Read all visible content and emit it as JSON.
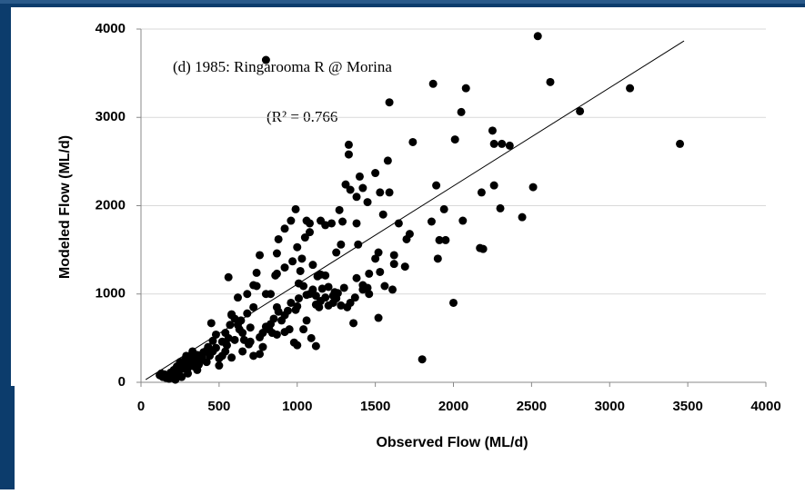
{
  "chart_data": {
    "type": "scatter",
    "annotations": [
      "(d) 1985: Ringarooma R @ Morina",
      "(R² = 0.766"
    ],
    "xlabel": "Observed Flow (ML/d)",
    "ylabel": "Modeled Flow (ML/d)",
    "color": "#000000",
    "grid": true,
    "xlim": [
      0,
      4000
    ],
    "xticks": [
      0,
      500,
      1000,
      1500,
      2000,
      2500,
      3000,
      3500,
      4000
    ],
    "ylim": [
      0,
      4000
    ],
    "yticks": [
      0,
      1000,
      2000,
      3000,
      4000
    ],
    "x": [
      800,
      2540,
      1870,
      2080,
      2620,
      3130,
      3450,
      2810,
      2050,
      1590,
      1800,
      2000,
      1520,
      1360,
      1330,
      1330,
      1580,
      1740,
      2250,
      2260,
      2310,
      2360,
      2510,
      2440,
      2190,
      2170,
      2010,
      2060,
      1860,
      1890,
      1910,
      1950,
      1940,
      2180,
      2260,
      2300,
      1700,
      1720,
      1690,
      1650,
      1620,
      1620,
      1610,
      1590,
      1550,
      1500,
      1530,
      1450,
      1420,
      1390,
      1380,
      1400,
      1420,
      1380,
      1310,
      1340,
      1450,
      1500,
      1460,
      1280,
      1250,
      1290,
      1270,
      1220,
      1150,
      1180,
      1080,
      1080,
      1050,
      1060,
      990,
      960,
      920,
      880,
      870,
      1000,
      870,
      860,
      830,
      920,
      970,
      1030,
      1020,
      1100,
      1130,
      1150,
      1180,
      1200,
      1230,
      1250,
      1280,
      1300,
      1230,
      1180,
      1150,
      1120,
      1100,
      1080,
      1060,
      1040,
      1010,
      1000,
      990,
      960,
      940,
      920,
      900,
      880,
      870,
      850,
      830,
      820,
      800,
      780,
      760,
      980,
      1000,
      1090,
      1120,
      1040,
      1060,
      950,
      920,
      870,
      840,
      780,
      760,
      720,
      700,
      690,
      660,
      650,
      630,
      620,
      600,
      580,
      570,
      560,
      550,
      540,
      520,
      500,
      480,
      460,
      440,
      430,
      420,
      400,
      390,
      380,
      370,
      360,
      350,
      340,
      330,
      320,
      310,
      300,
      290,
      280,
      270,
      260,
      250,
      240,
      230,
      220,
      210,
      200,
      190,
      180,
      170,
      160,
      150,
      140,
      130,
      120,
      740,
      740,
      680,
      620,
      560,
      580,
      640,
      600,
      540,
      520,
      480,
      460,
      760,
      720,
      700,
      650,
      580,
      500,
      420,
      360,
      300,
      260,
      220,
      450,
      680,
      720,
      800,
      1140,
      1200,
      1320,
      1340,
      1370,
      1380,
      1460,
      1420,
      1520,
      1560,
      1530,
      1900,
      1260,
      1240,
      1160,
      1120,
      1010
    ],
    "values": [
      3650,
      3920,
      3380,
      3330,
      3400,
      3330,
      2700,
      3070,
      3060,
      3170,
      260,
      900,
      730,
      670,
      2690,
      2580,
      2510,
      2720,
      2850,
      2700,
      2700,
      2680,
      2210,
      1870,
      1510,
      1520,
      2750,
      1830,
      1820,
      2230,
      1610,
      1610,
      1960,
      2150,
      2230,
      1970,
      1620,
      1680,
      1310,
      1800,
      1340,
      1440,
      1050,
      2150,
      1900,
      2370,
      2150,
      1070,
      1050,
      1560,
      1800,
      2330,
      2200,
      2100,
      2240,
      2180,
      2040,
      1400,
      1230,
      1560,
      1470,
      1820,
      1950,
      1800,
      1830,
      1780,
      1800,
      1700,
      1640,
      1830,
      1960,
      1830,
      1740,
      1620,
      1460,
      1530,
      1230,
      1210,
      1000,
      1300,
      1370,
      1400,
      1260,
      1330,
      1200,
      1220,
      1210,
      1080,
      980,
      950,
      870,
      1070,
      900,
      960,
      920,
      880,
      1050,
      1000,
      990,
      1090,
      950,
      860,
      820,
      900,
      810,
      760,
      700,
      800,
      850,
      720,
      660,
      600,
      630,
      560,
      510,
      450,
      420,
      500,
      410,
      600,
      700,
      600,
      570,
      540,
      560,
      400,
      320,
      300,
      460,
      430,
      480,
      560,
      600,
      650,
      720,
      770,
      650,
      500,
      420,
      350,
      300,
      270,
      390,
      350,
      300,
      400,
      360,
      340,
      280,
      250,
      200,
      310,
      240,
      180,
      350,
      280,
      220,
      160,
      300,
      250,
      190,
      150,
      230,
      120,
      180,
      90,
      140,
      60,
      110,
      40,
      80,
      50,
      90,
      60,
      100,
      80,
      1240,
      1090,
      1000,
      960,
      1190,
      760,
      700,
      480,
      560,
      460,
      540,
      470,
      1440,
      1100,
      620,
      350,
      280,
      190,
      230,
      140,
      100,
      60,
      30,
      670,
      780,
      850,
      1000,
      850,
      870,
      850,
      900,
      960,
      1180,
      1000,
      1100,
      1470,
      1090,
      1250,
      1400,
      1010,
      1020,
      1060,
      980,
      1120
    ],
    "trendline": {
      "x": [
        30,
        3476
      ],
      "values": [
        30,
        3866
      ]
    }
  }
}
